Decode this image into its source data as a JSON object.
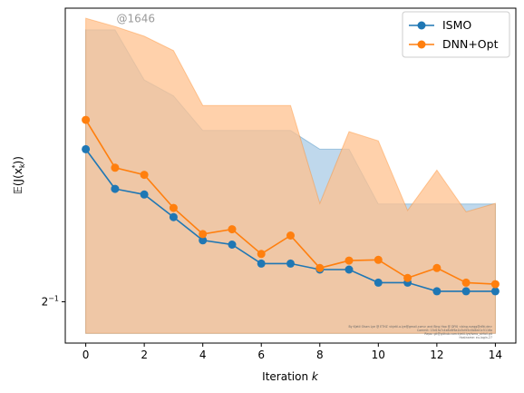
{
  "chart_data": {
    "type": "line",
    "x": [
      0,
      1,
      2,
      3,
      4,
      5,
      6,
      7,
      8,
      9,
      10,
      11,
      12,
      13,
      14
    ],
    "xlabel": "Iteration",
    "xlabel_var": "k",
    "ylabel": "𝔼(J(x",
    "ylabel_sub": "k",
    "ylabel_sup": "*",
    "ylabel_close": "))",
    "xlim": [
      -0.7,
      14.7
    ],
    "ylim": [
      0.452,
      1.025
    ],
    "yscale": "log2",
    "xticks": [
      0,
      2,
      4,
      6,
      8,
      10,
      12,
      14
    ],
    "ytick_labels": [
      {
        "value": 0.5,
        "base": "2",
        "exp": "−1"
      }
    ],
    "grid": false,
    "legend_position": "upper right",
    "series": [
      {
        "name": "ISMO",
        "color": "#1f77b4",
        "band_color": "#a9cbe5",
        "values": [
          0.726,
          0.659,
          0.65,
          0.615,
          0.581,
          0.575,
          0.549,
          0.549,
          0.541,
          0.541,
          0.524,
          0.524,
          0.513,
          0.513,
          0.513
        ],
        "band_lower": [
          0.463,
          0.463,
          0.463,
          0.463,
          0.463,
          0.463,
          0.463,
          0.463,
          0.463,
          0.463,
          0.463,
          0.463,
          0.463,
          0.463,
          0.463
        ],
        "band_upper": [
          0.972,
          0.972,
          0.86,
          0.827,
          0.76,
          0.76,
          0.76,
          0.76,
          0.726,
          0.726,
          0.635,
          0.635,
          0.635,
          0.635,
          0.635
        ]
      },
      {
        "name": "DNN+Opt",
        "color": "#ff7f0e",
        "band_color": "#ffc18f",
        "values": [
          0.78,
          0.694,
          0.682,
          0.629,
          0.59,
          0.597,
          0.562,
          0.588,
          0.543,
          0.553,
          0.554,
          0.53,
          0.543,
          0.524,
          0.522
        ],
        "band_lower": [
          0.463,
          0.463,
          0.463,
          0.463,
          0.463,
          0.463,
          0.463,
          0.463,
          0.463,
          0.463,
          0.463,
          0.463,
          0.463,
          0.463,
          0.463
        ],
        "band_upper": [
          1.0,
          0.98,
          0.957,
          0.924,
          0.808,
          0.808,
          0.808,
          0.808,
          0.636,
          0.758,
          0.741,
          0.625,
          0.69,
          0.623,
          0.636
        ]
      }
    ],
    "annotation": "@1646",
    "annotation_x": 1.05,
    "annotation_y": 0.99,
    "footer_lines": [
      "By Kjetil Olsen Lye @ ETHZ <kjetil.o.lye@gmail.com> and Bing Hao @ DFKI <bing.ruegg@dfki.de>",
      "Commit: 15d1fa7c4e8c6f6a1b3cfe5c0b8ee1c5116a",
      "Repo: git@github.com:kjetil-lye/ismo_airfoil.git",
      "Hostname: eu-login-27"
    ]
  }
}
